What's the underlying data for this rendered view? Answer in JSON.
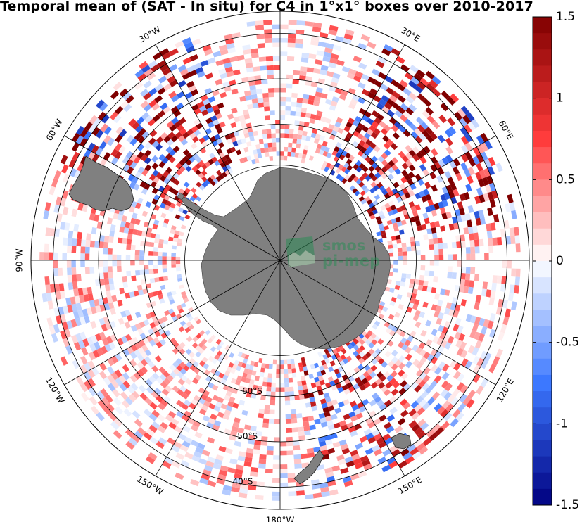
{
  "title": "Temporal mean of (SAT - In situ) for C4 in 1°x1° boxes over 2010-2017",
  "logo": {
    "line1": "smos",
    "line2": "pi-mep"
  },
  "longitude_labels": [
    {
      "text": "30°E",
      "lon": 30
    },
    {
      "text": "60°E",
      "lon": 60
    },
    {
      "text": "120°E",
      "lon": 120
    },
    {
      "text": "150°E",
      "lon": 150
    },
    {
      "text": "180°W",
      "lon": 180
    },
    {
      "text": "150°W",
      "lon": -150
    },
    {
      "text": "120°W",
      "lon": -120
    },
    {
      "text": "90°W",
      "lon": -90
    },
    {
      "text": "60°W",
      "lon": -60
    },
    {
      "text": "30°W",
      "lon": -30
    }
  ],
  "latitude_labels": [
    {
      "text": "60°S",
      "lat": -60
    },
    {
      "text": "50°S",
      "lat": -50
    },
    {
      "text": "40°S",
      "lat": -40
    }
  ],
  "colorbar": {
    "min": -1.5,
    "max": 1.5,
    "tick_labels": [
      "1.5",
      "1",
      "0.5",
      "0",
      "-0.5",
      "-1",
      "-1.5"
    ],
    "tick_values": [
      1.5,
      1,
      0.5,
      0,
      -0.5,
      -1,
      -1.5
    ],
    "colormap": "blue-white-red (diverging)",
    "color_low": "#00007f",
    "color_mid": "#ffffff",
    "color_high": "#7f0000"
  },
  "map": {
    "projection": "south polar stereographic",
    "latitude_range": [
      -90,
      -35
    ],
    "land_color": "#808080",
    "data_ring": "sea surface salinity difference in 1x1 degree boxes between about 68°S and 38°S"
  }
}
